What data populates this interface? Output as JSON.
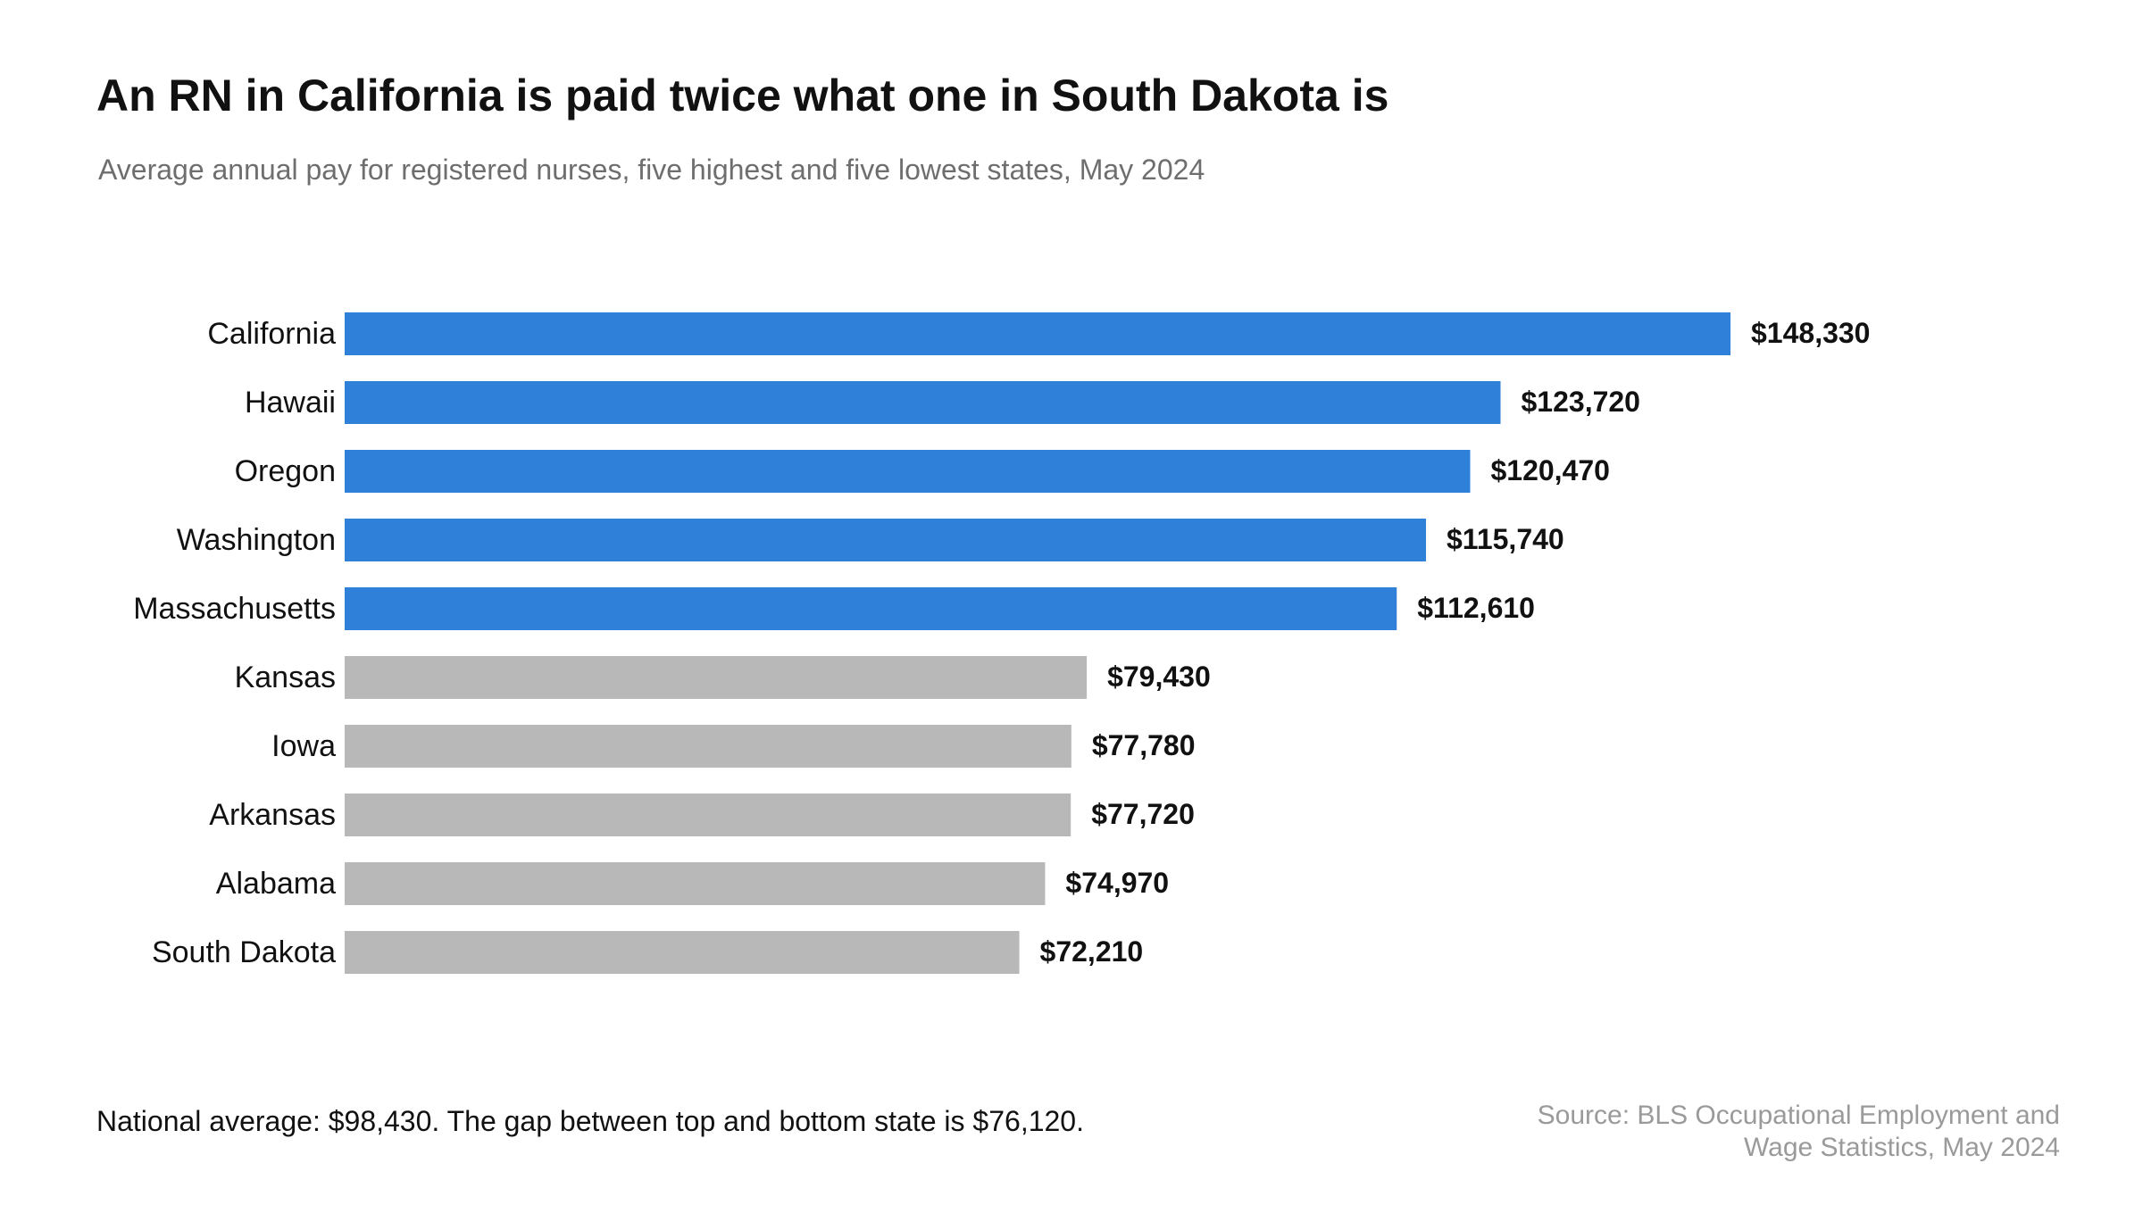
{
  "title": "An RN in California is paid twice what one in South Dakota is",
  "subtitle": "Average annual pay for registered nurses, five highest and five lowest states, May 2024",
  "footnote": "National average: $98,430.  The gap between top and bottom state is $76,120.",
  "source": {
    "line1": "Source: BLS Occupational Employment and",
    "line2": "Wage Statistics, May 2024"
  },
  "colors": {
    "highest": "#2f80d9",
    "lowest": "#b8b8b8",
    "label": "#111111"
  },
  "chart_data": {
    "type": "bar",
    "orientation": "horizontal",
    "categories": [
      "California",
      "Hawaii",
      "Oregon",
      "Washington",
      "Massachusetts",
      "Kansas",
      "Iowa",
      "Arkansas",
      "Alabama",
      "South Dakota"
    ],
    "values": [
      148330,
      123720,
      120470,
      115740,
      112610,
      79430,
      77780,
      77720,
      74970,
      72210
    ],
    "data_labels": [
      "$148,330",
      "$123,720",
      "$120,470",
      "$115,740",
      "$112,610",
      "$79,430",
      "$77,780",
      "$77,720",
      "$74,970",
      "$72,210"
    ],
    "groups": [
      "highest",
      "highest",
      "highest",
      "highest",
      "highest",
      "lowest",
      "lowest",
      "lowest",
      "lowest",
      "lowest"
    ],
    "xlim": [
      0,
      148330
    ],
    "grid": false,
    "legend": "none"
  }
}
